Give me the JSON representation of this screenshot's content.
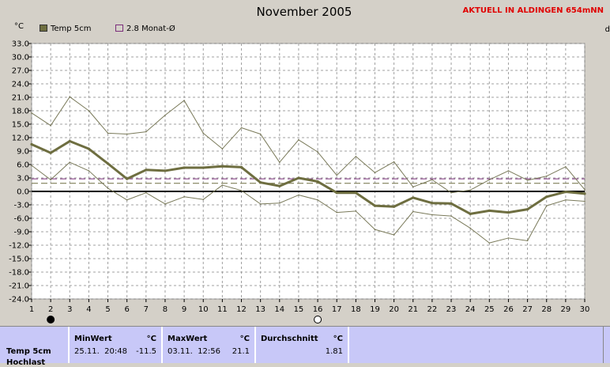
{
  "title": "November 2005",
  "subtitle": "AKTUELL IN ALDINGEN 654mNN",
  "unit_label": "°C",
  "right_clip_label": "d",
  "legend": [
    {
      "label": "Temp 5cm",
      "color": "#6e6e40",
      "style": "solid"
    },
    {
      "label": "2.8 Monat-Ø",
      "color": "#7b2d7b",
      "style": "outline"
    }
  ],
  "chart_data": {
    "type": "line",
    "title": "November 2005",
    "ylabel": "°C",
    "xlabel": "",
    "ylim": [
      -24,
      33
    ],
    "yticks": [
      "33.0",
      "30.0",
      "27.0",
      "24.0",
      "21.0",
      "18.0",
      "15.0",
      "12.0",
      "9.0",
      "6.0",
      "3.0",
      "0.0",
      "-3.0",
      "-6.0",
      "-9.0",
      "-12.0",
      "-15.0",
      "-18.0",
      "-21.0",
      "-24.0"
    ],
    "xlim": [
      1,
      30
    ],
    "xticks": [
      "1",
      "2",
      "3",
      "4",
      "5",
      "6",
      "7",
      "8",
      "9",
      "10",
      "11",
      "12",
      "13",
      "14",
      "15",
      "16",
      "17",
      "18",
      "19",
      "20",
      "21",
      "22",
      "23",
      "24",
      "25",
      "26",
      "27",
      "28",
      "29",
      "30"
    ],
    "grid": true,
    "legend_position": "top-left",
    "series": [
      {
        "name": "Temp 5cm",
        "color": "#6e6e40",
        "width": 3,
        "x": [
          1,
          2,
          3,
          4,
          5,
          6,
          7,
          8,
          9,
          10,
          11,
          12,
          13,
          14,
          15,
          16,
          17,
          18,
          19,
          20,
          21,
          22,
          23,
          24,
          25,
          26,
          27,
          28,
          29,
          30
        ],
        "values": [
          10.5,
          8.6,
          11.2,
          9.5,
          6.2,
          2.8,
          4.8,
          4.6,
          5.3,
          5.3,
          5.6,
          5.4,
          2.0,
          1.2,
          3.0,
          2.2,
          -0.3,
          -0.3,
          -3.2,
          -3.4,
          -1.4,
          -2.6,
          -2.7,
          -5.0,
          -4.3,
          -4.7,
          -4.0,
          -1.2,
          -0.1,
          -0.5
        ]
      },
      {
        "name": "",
        "color": "#7a7a5a",
        "width": 1,
        "x": [
          1,
          2,
          3,
          4,
          5,
          6,
          7,
          8,
          9,
          10,
          11,
          12,
          13,
          14,
          15,
          16,
          17,
          18,
          19,
          20,
          21,
          22,
          23,
          24,
          25,
          26,
          27,
          28,
          29,
          30
        ],
        "values": [
          17.5,
          14.7,
          21.1,
          18.0,
          13.0,
          12.8,
          13.3,
          17.0,
          20.3,
          13.0,
          9.5,
          14.2,
          12.8,
          6.5,
          11.5,
          8.8,
          3.6,
          7.8,
          4.2,
          6.6,
          1.0,
          2.6,
          -0.3,
          0.3,
          2.6,
          4.6,
          2.5,
          3.4,
          5.5,
          0.4
        ]
      },
      {
        "name": "",
        "color": "#7a7a5a",
        "width": 1,
        "x": [
          1,
          2,
          3,
          4,
          5,
          6,
          7,
          8,
          9,
          10,
          11,
          12,
          13,
          14,
          15,
          16,
          17,
          18,
          19,
          20,
          21,
          22,
          23,
          24,
          25,
          26,
          27,
          28,
          29,
          30
        ],
        "values": [
          5.8,
          2.6,
          6.5,
          4.6,
          0.7,
          -1.9,
          -0.3,
          -2.8,
          -1.2,
          -1.8,
          1.4,
          0.2,
          -2.8,
          -2.6,
          -0.8,
          -1.9,
          -4.7,
          -4.4,
          -8.5,
          -9.7,
          -4.5,
          -5.2,
          -5.5,
          -8.2,
          -11.5,
          -10.4,
          -11.0,
          -3.2,
          -1.9,
          -2.2
        ]
      }
    ],
    "reference_lines": [
      {
        "name": "2.8 Monat-Ø",
        "value": 2.8,
        "color": "#7b2d7b",
        "style": "dashed"
      },
      {
        "name": "",
        "value": 1.81,
        "color": "#6e6e40",
        "style": "dashed"
      },
      {
        "name": "",
        "value": 0.0,
        "color": "#000000",
        "style": "solid"
      }
    ],
    "moon_phases": [
      {
        "day": 2,
        "phase": "new"
      },
      {
        "day": 16,
        "phase": "full"
      }
    ]
  },
  "footer": {
    "row_label": "Temp 5cm",
    "row_label_partial": "Hochlast",
    "min": {
      "header": "MinWert",
      "unit": "°C",
      "datetime": "25.11.  20:48",
      "value": "-11.5"
    },
    "max": {
      "header": "MaxWert",
      "unit": "°C",
      "datetime": "03.11.  12:56",
      "value": "21.1"
    },
    "avg": {
      "header": "Durchschnitt",
      "unit": "°C",
      "value": "1.81"
    }
  }
}
